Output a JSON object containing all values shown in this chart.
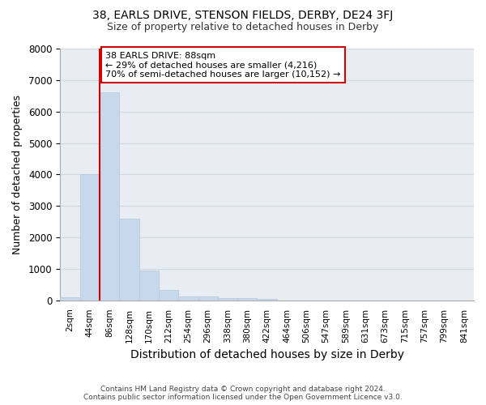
{
  "title1": "38, EARLS DRIVE, STENSON FIELDS, DERBY, DE24 3FJ",
  "title2": "Size of property relative to detached houses in Derby",
  "xlabel": "Distribution of detached houses by size in Derby",
  "ylabel": "Number of detached properties",
  "bar_color": "#c8d8eb",
  "bar_edge_color": "#b0c8dc",
  "bg_color": "#e8edf4",
  "grid_color": "#d0d8e0",
  "annotation_line_color": "#cc0000",
  "annotation_box_color": "#cc0000",
  "annotation_text_line1": "38 EARLS DRIVE: 88sqm",
  "annotation_text_line2": "← 29% of detached houses are smaller (4,216)",
  "annotation_text_line3": "70% of semi-detached houses are larger (10,152) →",
  "footer1": "Contains HM Land Registry data © Crown copyright and database right 2024.",
  "footer2": "Contains public sector information licensed under the Open Government Licence v3.0.",
  "bin_labels": [
    "2sqm",
    "44sqm",
    "86sqm",
    "128sqm",
    "170sqm",
    "212sqm",
    "254sqm",
    "296sqm",
    "338sqm",
    "380sqm",
    "422sqm",
    "464sqm",
    "506sqm",
    "547sqm",
    "589sqm",
    "631sqm",
    "673sqm",
    "715sqm",
    "757sqm",
    "799sqm",
    "841sqm"
  ],
  "bar_values": [
    90,
    4000,
    6600,
    2600,
    950,
    320,
    130,
    120,
    75,
    60,
    55,
    0,
    0,
    0,
    0,
    0,
    0,
    0,
    0,
    0,
    0
  ],
  "ylim": [
    0,
    8000
  ],
  "yticks": [
    0,
    1000,
    2000,
    3000,
    4000,
    5000,
    6000,
    7000,
    8000
  ],
  "property_bin_index": 2,
  "figsize": [
    6.0,
    5.0
  ],
  "dpi": 100
}
